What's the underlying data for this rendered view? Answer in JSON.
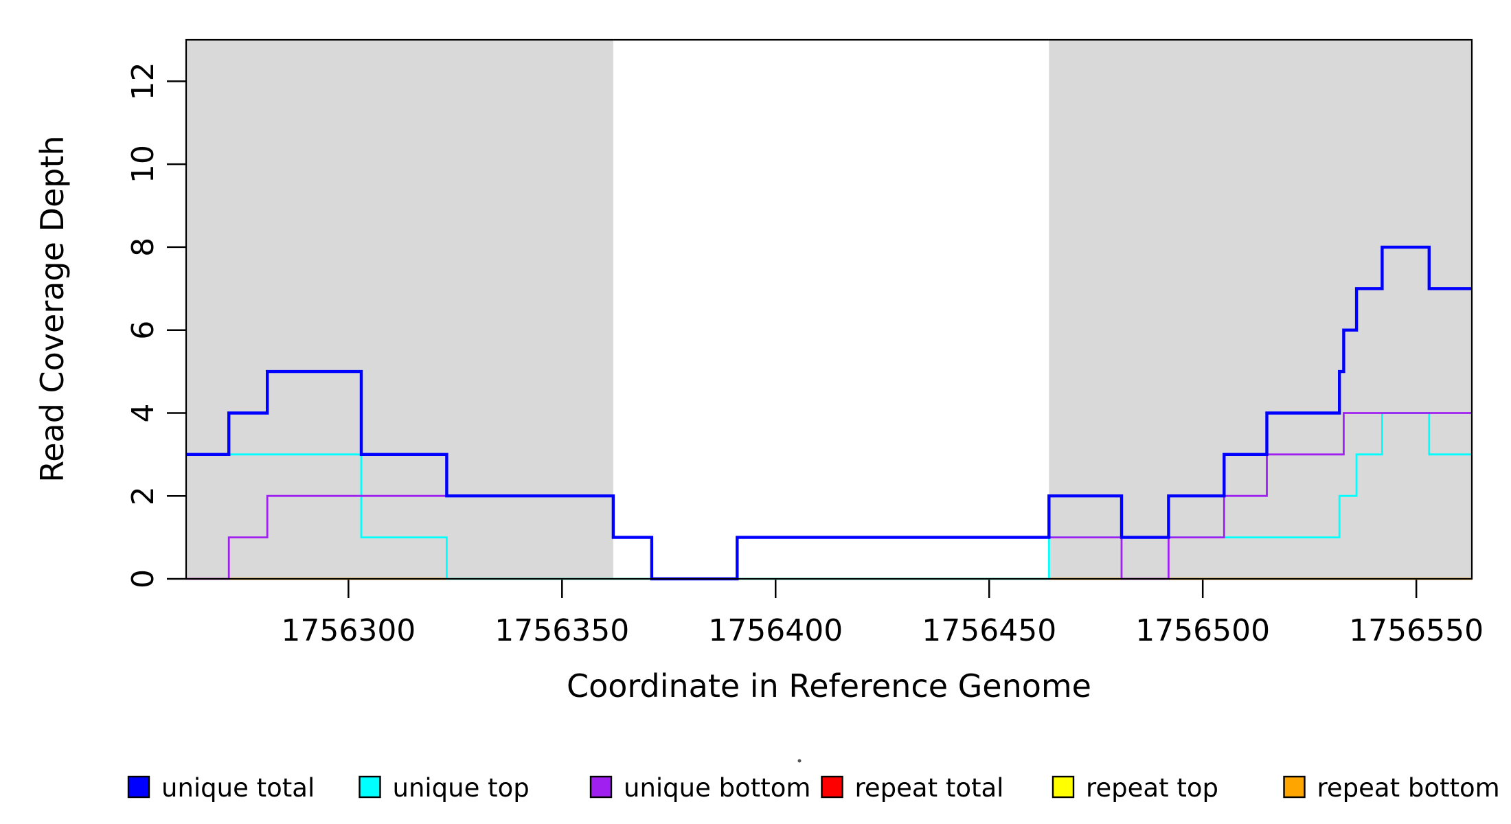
{
  "figure": {
    "background_color": "#FFFFFF",
    "plot_background_color": "#FFFFFF",
    "shaded_region_color": "#D9D9D9",
    "box_color": "#000000"
  },
  "chart_data": {
    "type": "line",
    "subtype": "step",
    "title": "",
    "xlabel": "Coordinate in Reference Genome",
    "ylabel": "Read Coverage Depth",
    "xlim": [
      1756262,
      1756563
    ],
    "ylim": [
      0,
      13
    ],
    "x_ticks": [
      1756300,
      1756350,
      1756400,
      1756450,
      1756500,
      1756550
    ],
    "x_tick_labels": [
      "1756300",
      "1756350",
      "1756400",
      "1756450",
      "1756500",
      "1756550"
    ],
    "y_ticks": [
      0,
      2,
      4,
      6,
      8,
      10,
      12
    ],
    "y_tick_labels": [
      "0",
      "2",
      "4",
      "6",
      "8",
      "10",
      "12"
    ],
    "grid": false,
    "legend_position": "bottom",
    "shaded_regions": [
      [
        1756262,
        1756362
      ],
      [
        1756464,
        1756563
      ]
    ],
    "series": [
      {
        "name": "repeat total",
        "color": "#FF0000",
        "line_width": 3,
        "steps": [
          [
            1756262,
            0
          ]
        ]
      },
      {
        "name": "repeat top",
        "color": "#FFFF00",
        "line_width": 3,
        "steps": [
          [
            1756262,
            0
          ]
        ]
      },
      {
        "name": "repeat bottom",
        "color": "#FFA500",
        "line_width": 3,
        "steps": [
          [
            1756262,
            0
          ]
        ]
      },
      {
        "name": "unique top",
        "color": "#00FFFF",
        "line_width": 2.8,
        "steps": [
          [
            1756262,
            3
          ],
          [
            1756303,
            1
          ],
          [
            1756323,
            0
          ],
          [
            1756464,
            1
          ],
          [
            1756532,
            2
          ],
          [
            1756536,
            3
          ],
          [
            1756542,
            4
          ],
          [
            1756553,
            3
          ]
        ]
      },
      {
        "name": "unique bottom",
        "color": "#A020F0",
        "line_width": 2.8,
        "steps": [
          [
            1756262,
            0
          ],
          [
            1756272,
            1
          ],
          [
            1756281,
            2
          ],
          [
            1756362,
            1
          ],
          [
            1756371,
            0
          ],
          [
            1756391,
            1
          ],
          [
            1756481,
            0
          ],
          [
            1756492,
            1
          ],
          [
            1756505,
            2
          ],
          [
            1756515,
            3
          ],
          [
            1756533,
            4
          ]
        ]
      },
      {
        "name": "unique total",
        "color": "#0000FF",
        "line_width": 4.4,
        "steps": [
          [
            1756262,
            3
          ],
          [
            1756272,
            4
          ],
          [
            1756281,
            5
          ],
          [
            1756303,
            3
          ],
          [
            1756323,
            2
          ],
          [
            1756362,
            1
          ],
          [
            1756371,
            0
          ],
          [
            1756391,
            1
          ],
          [
            1756464,
            2
          ],
          [
            1756481,
            1
          ],
          [
            1756492,
            2
          ],
          [
            1756505,
            3
          ],
          [
            1756515,
            4
          ],
          [
            1756532,
            5
          ],
          [
            1756533,
            6
          ],
          [
            1756536,
            7
          ],
          [
            1756542,
            8
          ],
          [
            1756553,
            7
          ]
        ]
      }
    ],
    "legend": [
      {
        "label": "unique total",
        "color": "#0000FF"
      },
      {
        "label": "unique top",
        "color": "#00FFFF"
      },
      {
        "label": "unique bottom",
        "color": "#A020F0"
      },
      {
        "label": "repeat total",
        "color": "#FF0000"
      },
      {
        "label": "repeat top",
        "color": "#FFFF00"
      },
      {
        "label": "repeat bottom",
        "color": "#FFA500"
      }
    ]
  }
}
